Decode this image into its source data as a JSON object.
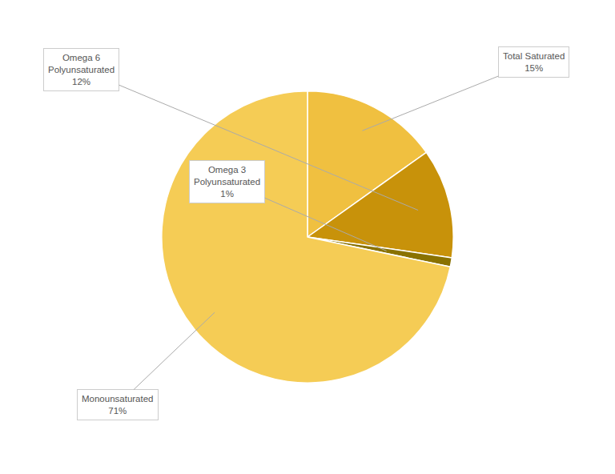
{
  "chart_data": {
    "type": "pie",
    "categories": [
      "Total Saturated\n15%",
      "Omega 6\nPolyunsaturated\n12%",
      "Omega 3\nPolyunsaturated\n1%",
      "Monounsaturated\n71%"
    ],
    "values": [
      15,
      12,
      1,
      71
    ],
    "colors": [
      "#F0C040",
      "#C8920A",
      "#8A7200",
      "#F5CC55"
    ],
    "annotations": [
      "Total Saturated\n15%",
      "Omega 6\nPolyunsaturated\n12%",
      "Omega 3\nPolyunsaturated\n1%",
      "Monounsaturated\n71%"
    ],
    "legend": false
  }
}
